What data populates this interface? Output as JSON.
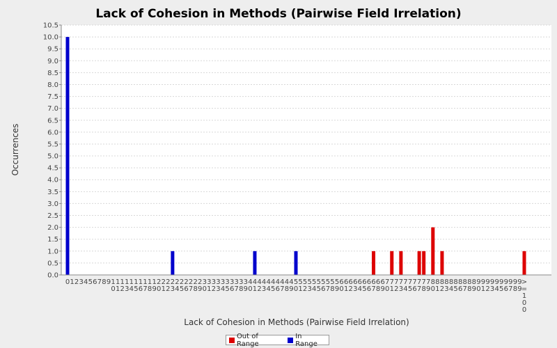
{
  "chart_data": {
    "type": "bar",
    "title": "Lack of Cohesion in Methods (Pairwise Field Irrelation)",
    "xlabel": "Lack of Cohesion in Methods (Pairwise Field Irrelation)",
    "ylabel": "Occurrences",
    "ylim": [
      0,
      10.5
    ],
    "yticks": [
      "0.0",
      "0.5",
      "1.0",
      "1.5",
      "2.0",
      "2.5",
      "3.0",
      "3.5",
      "4.0",
      "4.5",
      "5.0",
      "5.5",
      "6.0",
      "6.5",
      "7.0",
      "7.5",
      "8.0",
      "8.5",
      "9.0",
      "9.5",
      "10.0",
      "10.5"
    ],
    "categories": [
      "0",
      "1",
      "2",
      "3",
      "4",
      "5",
      "6",
      "7",
      "8",
      "9",
      "10",
      "11",
      "12",
      "13",
      "14",
      "15",
      "16",
      "17",
      "18",
      "19",
      "20",
      "21",
      "22",
      "23",
      "24",
      "25",
      "26",
      "27",
      "28",
      "29",
      "30",
      "31",
      "32",
      "33",
      "34",
      "35",
      "36",
      "37",
      "38",
      "39",
      "40",
      "41",
      "42",
      "43",
      "44",
      "45",
      "46",
      "47",
      "48",
      "49",
      "50",
      "51",
      "52",
      "53",
      "54",
      "55",
      "56",
      "57",
      "58",
      "59",
      "60",
      "61",
      "62",
      "63",
      "64",
      "65",
      "66",
      "67",
      "68",
      "69",
      "70",
      "71",
      "72",
      "73",
      "74",
      "75",
      "76",
      "77",
      "78",
      "79",
      "80",
      "81",
      "82",
      "83",
      "84",
      "85",
      "86",
      "87",
      "88",
      "89",
      "90",
      "91",
      "92",
      "93",
      "94",
      "95",
      "96",
      "97",
      "98",
      "99",
      ">=100"
    ],
    "series": [
      {
        "name": "Out of Range",
        "color": "#dd0000",
        "points": [
          {
            "x": "67",
            "y": 1
          },
          {
            "x": "71",
            "y": 1
          },
          {
            "x": "73",
            "y": 1
          },
          {
            "x": "77",
            "y": 1
          },
          {
            "x": "78",
            "y": 1
          },
          {
            "x": "80",
            "y": 2
          },
          {
            "x": "82",
            "y": 1
          },
          {
            "x": ">=100",
            "y": 1
          }
        ]
      },
      {
        "name": "In Range",
        "color": "#0000cc",
        "points": [
          {
            "x": "0",
            "y": 10
          },
          {
            "x": "23",
            "y": 1
          },
          {
            "x": "41",
            "y": 1
          },
          {
            "x": "50",
            "y": 1
          }
        ]
      }
    ],
    "grid": true,
    "legend_position": "bottom"
  }
}
